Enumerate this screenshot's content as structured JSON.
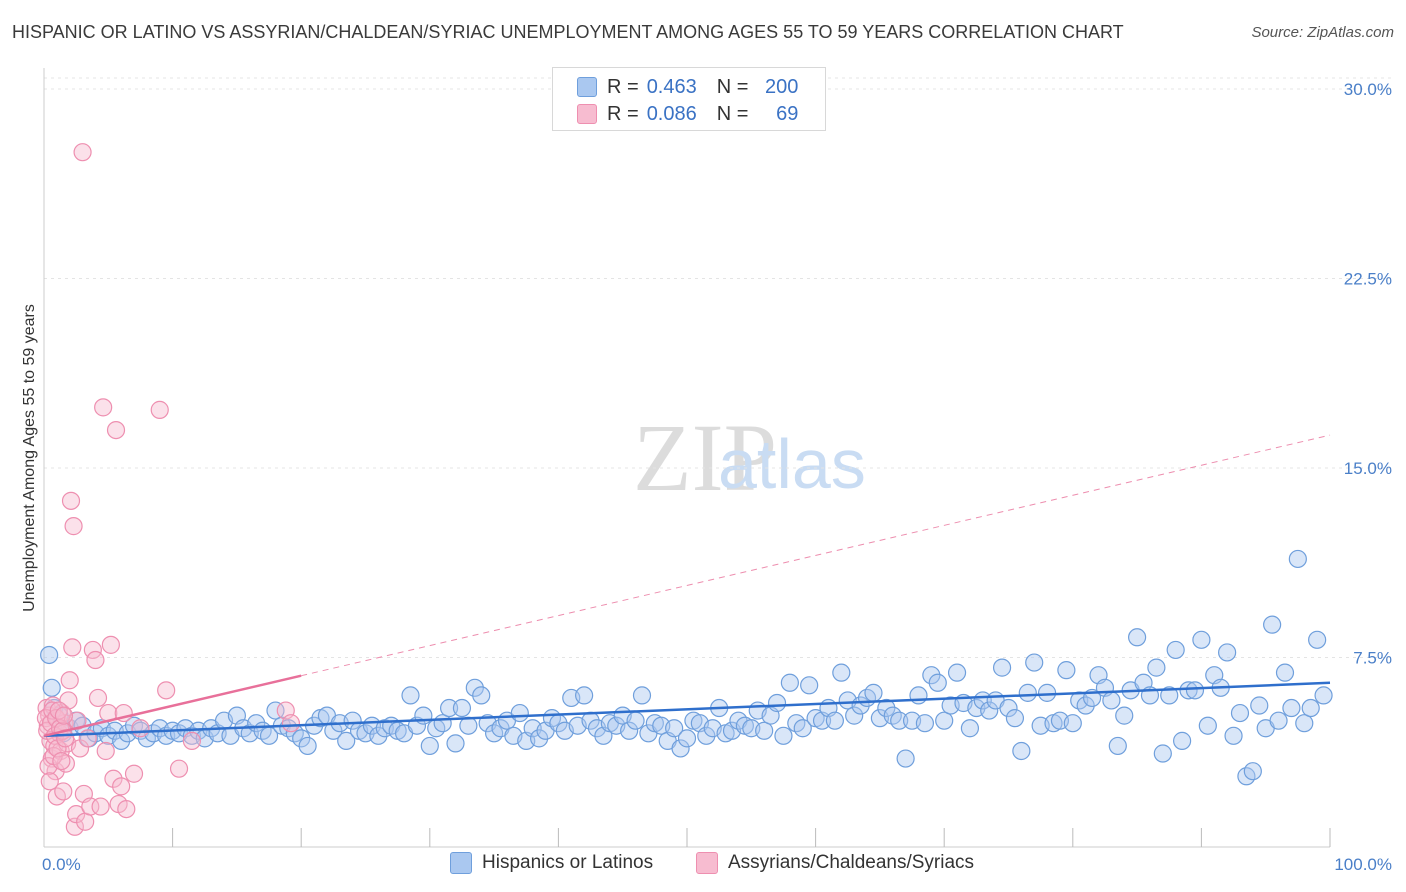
{
  "header": {
    "title": "HISPANIC OR LATINO VS ASSYRIAN/CHALDEAN/SYRIAC UNEMPLOYMENT AMONG AGES 55 TO 59 YEARS CORRELATION CHART",
    "source": "Source: ZipAtlas.com"
  },
  "legend_top": {
    "rows": [
      {
        "r_label": "R =",
        "r_value": "0.463",
        "n_label": "N =",
        "n_value": "200",
        "color": "#aac8f0",
        "border": "#6f9fdc"
      },
      {
        "r_label": "R =",
        "r_value": "0.086",
        "n_label": "N =",
        "n_value": "69",
        "color": "#f7bcd0",
        "border": "#ee8fb0"
      }
    ]
  },
  "legend_bottom": [
    {
      "label": "Hispanics or Latinos",
      "color": "#aac8f0",
      "border": "#6f9fdc"
    },
    {
      "label": "Assyrians/Chaldeans/Syriacs",
      "color": "#f7bcd0",
      "border": "#ee8fb0"
    }
  ],
  "watermark": {
    "zip": "ZIP",
    "atlas": "atlas"
  },
  "chart_data": {
    "type": "scatter",
    "title": "HISPANIC OR LATINO VS ASSYRIAN/CHALDEAN/SYRIAC UNEMPLOYMENT AMONG AGES 55 TO 59 YEARS CORRELATION CHART",
    "xlabel": "",
    "ylabel": "Unemployment Among Ages 55 to 59 years",
    "xlim": [
      0,
      100
    ],
    "ylim": [
      0,
      30
    ],
    "x_tick_labels": [
      "0.0%",
      "100.0%"
    ],
    "y_ticks": [
      7.5,
      15.0,
      22.5,
      30.0
    ],
    "y_tick_labels": [
      "7.5%",
      "15.0%",
      "22.5%",
      "30.0%"
    ],
    "grid": true,
    "series": [
      {
        "name": "Hispanics or Latinos",
        "color": "#6f9fdc",
        "fill": "#aac8f0",
        "R": 0.463,
        "N": 200,
        "trend": {
          "x": [
            0,
            100
          ],
          "y": [
            4.4,
            6.5
          ],
          "style": "solid",
          "color": "#2f6fcc"
        },
        "points": [
          [
            0.4,
            7.6
          ],
          [
            0.6,
            6.3
          ],
          [
            0.8,
            5.5
          ],
          [
            1.2,
            5.2
          ],
          [
            1.5,
            4.5
          ],
          [
            2.0,
            4.7
          ],
          [
            2.5,
            5.0
          ],
          [
            3.0,
            4.8
          ],
          [
            3.5,
            4.3
          ],
          [
            4.0,
            4.5
          ],
          [
            4.5,
            4.7
          ],
          [
            5.0,
            4.4
          ],
          [
            5.5,
            4.6
          ],
          [
            6.0,
            4.2
          ],
          [
            6.5,
            4.5
          ],
          [
            7.0,
            4.8
          ],
          [
            7.5,
            4.6
          ],
          [
            8.0,
            4.3
          ],
          [
            8.5,
            4.5
          ],
          [
            9.0,
            4.7
          ],
          [
            9.5,
            4.4
          ],
          [
            10.0,
            4.6
          ],
          [
            10.5,
            4.5
          ],
          [
            11.0,
            4.7
          ],
          [
            11.5,
            4.4
          ],
          [
            12.0,
            4.6
          ],
          [
            12.5,
            4.3
          ],
          [
            13.0,
            4.7
          ],
          [
            13.5,
            4.5
          ],
          [
            14.0,
            5.0
          ],
          [
            14.5,
            4.4
          ],
          [
            15.0,
            5.2
          ],
          [
            15.5,
            4.7
          ],
          [
            16.0,
            4.5
          ],
          [
            16.5,
            4.9
          ],
          [
            17.0,
            4.6
          ],
          [
            17.5,
            4.4
          ],
          [
            18.0,
            5.4
          ],
          [
            18.5,
            4.8
          ],
          [
            19.0,
            4.7
          ],
          [
            19.5,
            4.5
          ],
          [
            20.0,
            4.3
          ],
          [
            20.5,
            4.0
          ],
          [
            21.0,
            4.8
          ],
          [
            21.5,
            5.1
          ],
          [
            22.0,
            5.2
          ],
          [
            22.5,
            4.6
          ],
          [
            23.0,
            4.9
          ],
          [
            23.5,
            4.2
          ],
          [
            24.0,
            5.0
          ],
          [
            24.5,
            4.6
          ],
          [
            25.0,
            4.5
          ],
          [
            25.5,
            4.8
          ],
          [
            26.0,
            4.4
          ],
          [
            26.5,
            4.7
          ],
          [
            27.0,
            4.8
          ],
          [
            27.5,
            4.6
          ],
          [
            28.0,
            4.5
          ],
          [
            28.5,
            6.0
          ],
          [
            29.0,
            4.8
          ],
          [
            29.5,
            5.2
          ],
          [
            30.0,
            4.0
          ],
          [
            30.5,
            4.7
          ],
          [
            31.0,
            4.9
          ],
          [
            31.5,
            5.5
          ],
          [
            32.0,
            4.1
          ],
          [
            32.5,
            5.5
          ],
          [
            33.0,
            4.8
          ],
          [
            33.5,
            6.3
          ],
          [
            34.0,
            6.0
          ],
          [
            34.5,
            4.9
          ],
          [
            35.0,
            4.5
          ],
          [
            35.5,
            4.7
          ],
          [
            36.0,
            5.0
          ],
          [
            36.5,
            4.4
          ],
          [
            37.0,
            5.3
          ],
          [
            37.5,
            4.2
          ],
          [
            38.0,
            4.7
          ],
          [
            38.5,
            4.3
          ],
          [
            39.0,
            4.6
          ],
          [
            39.5,
            5.1
          ],
          [
            40.0,
            4.9
          ],
          [
            40.5,
            4.6
          ],
          [
            41.0,
            5.9
          ],
          [
            41.5,
            4.8
          ],
          [
            42.0,
            6.0
          ],
          [
            42.5,
            5.0
          ],
          [
            43.0,
            4.7
          ],
          [
            43.5,
            4.4
          ],
          [
            44.0,
            4.9
          ],
          [
            44.5,
            4.8
          ],
          [
            45.0,
            5.2
          ],
          [
            45.5,
            4.6
          ],
          [
            46.0,
            5.0
          ],
          [
            46.5,
            6.0
          ],
          [
            47.0,
            4.5
          ],
          [
            47.5,
            4.9
          ],
          [
            48.0,
            4.8
          ],
          [
            48.5,
            4.2
          ],
          [
            49.0,
            4.7
          ],
          [
            49.5,
            3.9
          ],
          [
            50.0,
            4.3
          ],
          [
            50.5,
            5.0
          ],
          [
            51.0,
            4.9
          ],
          [
            51.5,
            4.4
          ],
          [
            52.0,
            4.7
          ],
          [
            52.5,
            5.5
          ],
          [
            53.0,
            4.5
          ],
          [
            53.5,
            4.6
          ],
          [
            54.0,
            5.0
          ],
          [
            54.5,
            4.8
          ],
          [
            55.0,
            4.7
          ],
          [
            55.5,
            5.4
          ],
          [
            56.0,
            4.6
          ],
          [
            56.5,
            5.2
          ],
          [
            57.0,
            5.7
          ],
          [
            57.5,
            4.4
          ],
          [
            58.0,
            6.5
          ],
          [
            58.5,
            4.9
          ],
          [
            59.0,
            4.7
          ],
          [
            59.5,
            6.4
          ],
          [
            60.0,
            5.1
          ],
          [
            60.5,
            5.0
          ],
          [
            61.0,
            5.5
          ],
          [
            61.5,
            5.0
          ],
          [
            62.0,
            6.9
          ],
          [
            62.5,
            5.8
          ],
          [
            63.0,
            5.2
          ],
          [
            63.5,
            5.6
          ],
          [
            64.0,
            5.9
          ],
          [
            64.5,
            6.1
          ],
          [
            65.0,
            5.1
          ],
          [
            65.5,
            5.5
          ],
          [
            66.0,
            5.2
          ],
          [
            66.5,
            5.0
          ],
          [
            67.0,
            3.5
          ],
          [
            67.5,
            5.0
          ],
          [
            68.0,
            6.0
          ],
          [
            68.5,
            4.9
          ],
          [
            69.0,
            6.8
          ],
          [
            69.5,
            6.5
          ],
          [
            70.0,
            5.0
          ],
          [
            70.5,
            5.6
          ],
          [
            71.0,
            6.9
          ],
          [
            71.5,
            5.7
          ],
          [
            72.0,
            4.7
          ],
          [
            72.5,
            5.5
          ],
          [
            73.0,
            5.8
          ],
          [
            73.5,
            5.4
          ],
          [
            74.0,
            5.8
          ],
          [
            74.5,
            7.1
          ],
          [
            75.0,
            5.5
          ],
          [
            75.5,
            5.1
          ],
          [
            76.0,
            3.8
          ],
          [
            76.5,
            6.1
          ],
          [
            77.0,
            7.3
          ],
          [
            77.5,
            4.8
          ],
          [
            78.0,
            6.1
          ],
          [
            78.5,
            4.9
          ],
          [
            79.0,
            5.0
          ],
          [
            79.5,
            7.0
          ],
          [
            80.0,
            4.9
          ],
          [
            80.5,
            5.8
          ],
          [
            81.0,
            5.6
          ],
          [
            81.5,
            5.9
          ],
          [
            82.0,
            6.8
          ],
          [
            82.5,
            6.3
          ],
          [
            83.0,
            5.8
          ],
          [
            83.5,
            4.0
          ],
          [
            84.0,
            5.2
          ],
          [
            84.5,
            6.2
          ],
          [
            85.0,
            8.3
          ],
          [
            85.5,
            6.5
          ],
          [
            86.0,
            6.0
          ],
          [
            86.5,
            7.1
          ],
          [
            87.0,
            3.7
          ],
          [
            87.5,
            6.0
          ],
          [
            88.0,
            7.8
          ],
          [
            88.5,
            4.2
          ],
          [
            89.0,
            6.2
          ],
          [
            89.5,
            6.2
          ],
          [
            90.0,
            8.2
          ],
          [
            90.5,
            4.8
          ],
          [
            91.0,
            6.8
          ],
          [
            91.5,
            6.3
          ],
          [
            92.0,
            7.7
          ],
          [
            92.5,
            4.4
          ],
          [
            93.0,
            5.3
          ],
          [
            93.5,
            2.8
          ],
          [
            94.0,
            3.0
          ],
          [
            94.5,
            5.6
          ],
          [
            95.0,
            4.7
          ],
          [
            95.5,
            8.8
          ],
          [
            96.0,
            5.0
          ],
          [
            96.5,
            6.9
          ],
          [
            97.0,
            5.5
          ],
          [
            97.5,
            11.4
          ],
          [
            98.0,
            4.9
          ],
          [
            98.5,
            5.5
          ],
          [
            99.0,
            8.2
          ],
          [
            99.5,
            6.0
          ]
        ]
      },
      {
        "name": "Assyrians/Chaldeans/Syriacs",
        "color": "#ee8fb0",
        "fill": "#f7bcd0",
        "R": 0.086,
        "N": 69,
        "trend": {
          "x": [
            0,
            100
          ],
          "y": [
            4.4,
            16.3
          ],
          "style": "dashed",
          "color": "#e8709a",
          "solid_until_x": 20
        },
        "points": [
          [
            0.2,
            5.5
          ],
          [
            0.3,
            4.8
          ],
          [
            0.4,
            5.2
          ],
          [
            0.5,
            4.2
          ],
          [
            0.6,
            3.5
          ],
          [
            0.7,
            5.6
          ],
          [
            0.8,
            4.0
          ],
          [
            0.9,
            3.0
          ],
          [
            1.0,
            2.0
          ],
          [
            1.1,
            5.0
          ],
          [
            1.2,
            4.5
          ],
          [
            1.3,
            3.8
          ],
          [
            1.4,
            5.3
          ],
          [
            1.5,
            2.2
          ],
          [
            1.6,
            4.9
          ],
          [
            1.7,
            3.3
          ],
          [
            1.8,
            4.1
          ],
          [
            1.9,
            5.8
          ],
          [
            2.0,
            6.6
          ],
          [
            2.1,
            13.7
          ],
          [
            2.2,
            7.9
          ],
          [
            2.3,
            12.7
          ],
          [
            2.4,
            0.8
          ],
          [
            2.5,
            1.3
          ],
          [
            2.6,
            5.0
          ],
          [
            2.8,
            3.9
          ],
          [
            3.0,
            27.5
          ],
          [
            3.1,
            2.1
          ],
          [
            3.2,
            1.0
          ],
          [
            3.4,
            4.3
          ],
          [
            3.6,
            1.6
          ],
          [
            3.8,
            7.8
          ],
          [
            4.0,
            7.4
          ],
          [
            4.2,
            5.9
          ],
          [
            4.4,
            1.6
          ],
          [
            4.6,
            17.4
          ],
          [
            4.8,
            3.8
          ],
          [
            5.0,
            5.3
          ],
          [
            5.2,
            8.0
          ],
          [
            5.4,
            2.7
          ],
          [
            5.6,
            16.5
          ],
          [
            5.8,
            1.7
          ],
          [
            6.0,
            2.4
          ],
          [
            6.2,
            5.3
          ],
          [
            6.4,
            1.5
          ],
          [
            7.0,
            2.9
          ],
          [
            7.5,
            4.7
          ],
          [
            9.0,
            17.3
          ],
          [
            9.5,
            6.2
          ],
          [
            10.5,
            3.1
          ],
          [
            11.5,
            4.2
          ],
          [
            0.15,
            5.1
          ],
          [
            0.25,
            4.6
          ],
          [
            0.35,
            3.2
          ],
          [
            0.45,
            2.6
          ],
          [
            0.55,
            4.9
          ],
          [
            0.65,
            5.4
          ],
          [
            0.75,
            3.6
          ],
          [
            0.85,
            4.4
          ],
          [
            0.95,
            5.1
          ],
          [
            1.05,
            3.9
          ],
          [
            1.15,
            5.4
          ],
          [
            1.25,
            4.7
          ],
          [
            1.35,
            3.4
          ],
          [
            1.45,
            4.6
          ],
          [
            1.55,
            5.2
          ],
          [
            1.65,
            4.3
          ],
          [
            18.8,
            5.4
          ],
          [
            19.2,
            4.9
          ]
        ]
      }
    ]
  }
}
